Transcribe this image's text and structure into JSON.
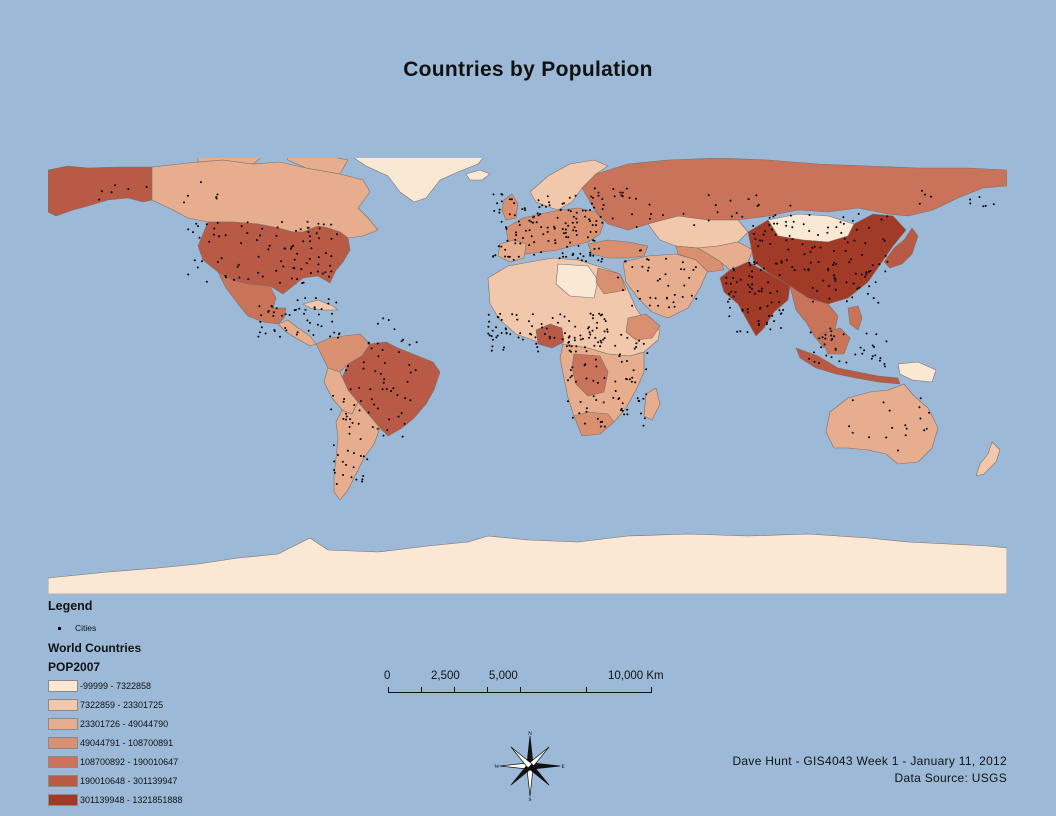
{
  "title": "Countries by Population",
  "legend": {
    "heading": "Legend",
    "cities_label": "Cities",
    "layer_title": "World Countries",
    "field_name": "POP2007",
    "classes": [
      {
        "label": "-99999 - 7322858",
        "color": "#fbe8d4"
      },
      {
        "label": "7322859 - 23301725",
        "color": "#f1c8ac"
      },
      {
        "label": "23301726 - 49044790",
        "color": "#e6ad8f"
      },
      {
        "label": "49044791 - 108700891",
        "color": "#d99070"
      },
      {
        "label": "108700892 - 190010647",
        "color": "#c9735a"
      },
      {
        "label": "190010648 - 301139947",
        "color": "#b85a46"
      },
      {
        "label": "301139948 - 1321851888",
        "color": "#a23a28"
      }
    ]
  },
  "scale_bar": {
    "labels": [
      "0",
      "2,500",
      "5,000",
      "10,000 Km"
    ]
  },
  "compass": {
    "n": "N",
    "s": "S",
    "e": "E",
    "w": "W"
  },
  "credits": {
    "author_line": "Dave Hunt - GIS4043 Week 1 - January 11, 2012",
    "source_line": "Data Source: USGS"
  },
  "colors": {
    "ocean": "#9cbad7",
    "border": "#7a6a60",
    "city_dot": "#000000"
  }
}
